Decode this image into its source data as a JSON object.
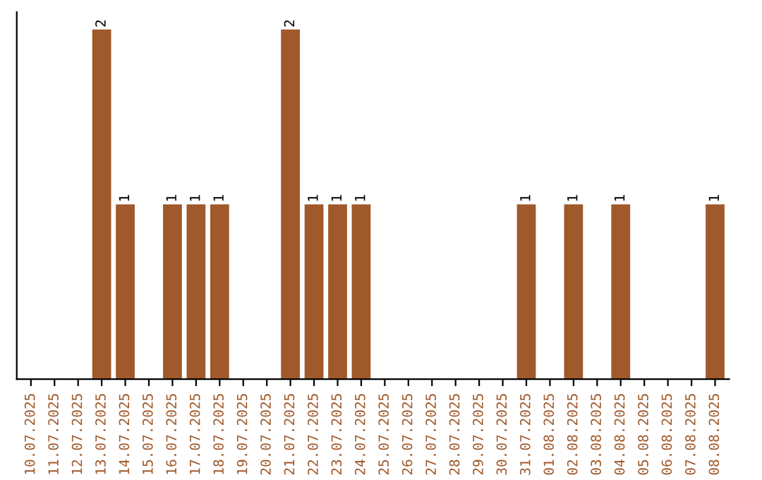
{
  "chart_data": {
    "type": "bar",
    "categories": [
      "10.07.2025",
      "11.07.2025",
      "12.07.2025",
      "13.07.2025",
      "14.07.2025",
      "15.07.2025",
      "16.07.2025",
      "17.07.2025",
      "18.07.2025",
      "19.07.2025",
      "20.07.2025",
      "21.07.2025",
      "22.07.2025",
      "23.07.2025",
      "24.07.2025",
      "25.07.2025",
      "26.07.2025",
      "27.07.2025",
      "28.07.2025",
      "29.07.2025",
      "30.07.2025",
      "31.07.2025",
      "01.08.2025",
      "02.08.2025",
      "03.08.2025",
      "04.08.2025",
      "05.08.2025",
      "06.08.2025",
      "07.08.2025",
      "08.08.2025"
    ],
    "values": [
      0,
      0,
      0,
      2,
      1,
      0,
      1,
      1,
      1,
      0,
      0,
      2,
      1,
      1,
      1,
      0,
      0,
      0,
      0,
      0,
      0,
      1,
      0,
      1,
      0,
      1,
      0,
      0,
      0,
      1
    ],
    "value_labels": [
      null,
      null,
      null,
      "2",
      "1",
      null,
      "1",
      "1",
      "1",
      null,
      null,
      "2",
      "1",
      "1",
      "1",
      null,
      null,
      null,
      null,
      null,
      null,
      "1",
      null,
      "1",
      null,
      "1",
      null,
      null,
      null,
      "1"
    ],
    "color": "#a0592a",
    "grid": false,
    "tick_labels": "x"
  }
}
